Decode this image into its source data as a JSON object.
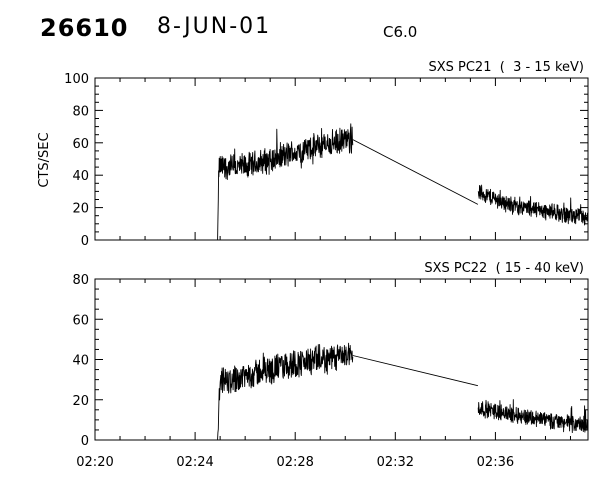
{
  "header": {
    "event_id": "26610",
    "date": "8-JUN-01",
    "flare_class": "C6.0"
  },
  "chart_data": [
    {
      "type": "line",
      "title": "SXS PC21  (  3 - 15 keV)",
      "ylabel": "CTS/SEC",
      "ylim": [
        0,
        100
      ],
      "yticks": [
        0,
        20,
        40,
        60,
        80,
        100
      ],
      "xlim": [
        "02:20",
        "02:39.7"
      ],
      "xticks": [
        "02:20",
        "02:24",
        "02:28",
        "02:32",
        "02:36"
      ],
      "grid": false,
      "series": [
        {
          "segments": [
            {
              "x_range": [
                "02:24.9",
                "02:30.3"
              ],
              "y_trend": [
                [
                  "02:24.9",
                  0
                ],
                [
                  "02:24.95",
                  45
                ],
                [
                  "02:26",
                  45
                ],
                [
                  "02:28",
                  54
                ],
                [
                  "02:29",
                  58
                ],
                [
                  "02:30.3",
                  62
                ]
              ],
              "noise_amplitude": 8
            },
            {
              "x_range": [
                "02:30.3",
                "02:35.3"
              ],
              "y_trend": [
                [
                  "02:30.3",
                  62
                ],
                [
                  "02:35.3",
                  22
                ]
              ],
              "noise_amplitude": 0
            },
            {
              "x_range": [
                "02:35.3",
                "02:39.7"
              ],
              "y_trend": [
                [
                  "02:35.3",
                  30
                ],
                [
                  "02:36.5",
                  22
                ],
                [
                  "02:38",
                  18
                ],
                [
                  "02:39.7",
                  13
                ]
              ],
              "noise_amplitude": 5
            }
          ]
        }
      ]
    },
    {
      "type": "line",
      "title": "SXS PC22  ( 15 - 40 keV)",
      "ylabel": "",
      "ylim": [
        0,
        80
      ],
      "yticks": [
        0,
        20,
        40,
        60,
        80
      ],
      "xlim": [
        "02:20",
        "02:39.7"
      ],
      "xticks": [
        "02:20",
        "02:24",
        "02:28",
        "02:32",
        "02:36"
      ],
      "grid": false,
      "series": [
        {
          "segments": [
            {
              "x_range": [
                "02:24.9",
                "02:30.3"
              ],
              "y_trend": [
                [
                  "02:24.9",
                  0
                ],
                [
                  "02:25",
                  28
                ],
                [
                  "02:26",
                  32
                ],
                [
                  "02:28",
                  38
                ],
                [
                  "02:30.3",
                  42
                ]
              ],
              "noise_amplitude": 7
            },
            {
              "x_range": [
                "02:30.3",
                "02:35.3"
              ],
              "y_trend": [
                [
                  "02:30.3",
                  42
                ],
                [
                  "02:35.3",
                  27
                ]
              ],
              "noise_amplitude": 0
            },
            {
              "x_range": [
                "02:35.3",
                "02:39.7"
              ],
              "y_trend": [
                [
                  "02:35.3",
                  16
                ],
                [
                  "02:37",
                  12
                ],
                [
                  "02:39.7",
                  7
                ]
              ],
              "noise_amplitude": 4
            }
          ]
        }
      ]
    }
  ]
}
